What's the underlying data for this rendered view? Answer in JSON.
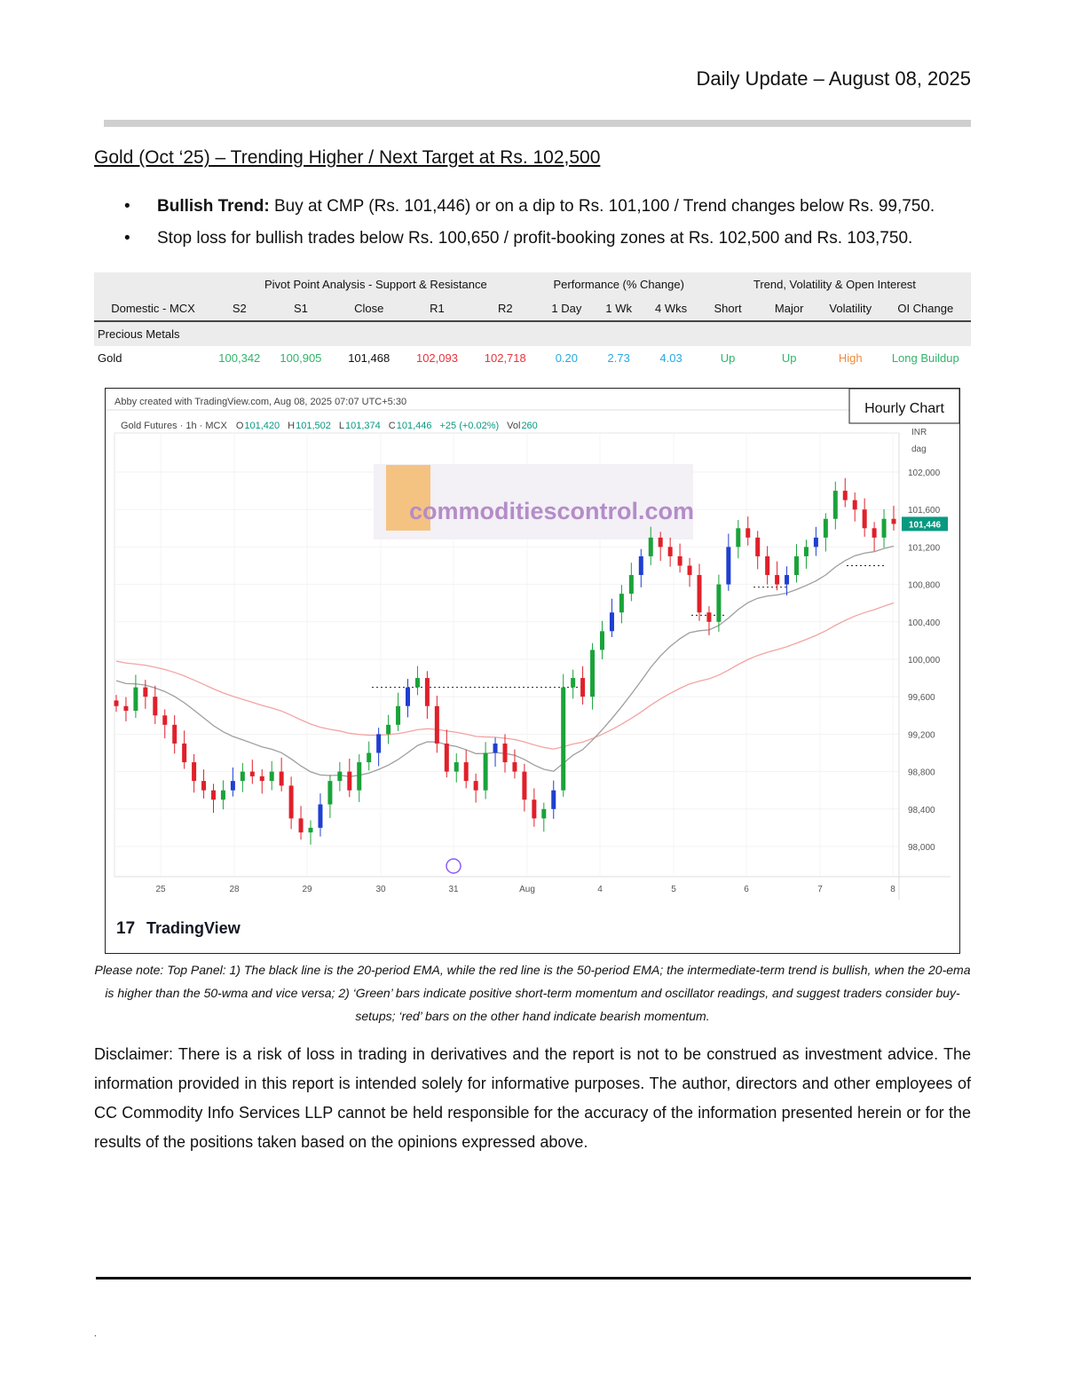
{
  "header": {
    "date": "Daily Update – August 08, 2025"
  },
  "title": "Gold (Oct   ‘25) – Trending Higher / Next Target at Rs. 102,500",
  "bullets": [
    {
      "bold": "Bullish Trend:",
      "text": " Buy at CMP (Rs. 101,446) or on a dip to Rs. 101,100 / Trend changes below Rs. 99,750."
    },
    {
      "bold": "",
      "text": "Stop loss for bullish trades below Rs. 100,650 / profit-booking zones at Rs. 102,500 and Rs. 103,750."
    }
  ],
  "table": {
    "groups": [
      "Pivot Point Analysis - Support & Resistance",
      "Performance (% Change)",
      "Trend, Volatility & Open Interest"
    ],
    "columns": [
      "Domestic - MCX",
      "S2",
      "S1",
      "Close",
      "R1",
      "R2",
      "1 Day",
      "1 Wk",
      "4 Wks",
      "Short",
      "Major",
      "Volatility",
      "OI Change"
    ],
    "section": "Precious Metals",
    "row": [
      "Gold",
      "100,342",
      "100,905",
      "101,468",
      "102,093",
      "102,718",
      "0.20",
      "2.73",
      "4.03",
      "Up",
      "Up",
      "High",
      "Long Buildup"
    ]
  },
  "chart_data": {
    "type": "candlestick",
    "label": "Hourly Chart",
    "attribution": "Abby created with TradingView.com, Aug 08, 2025 07:07 UTC+5:30",
    "symbol": "Gold Futures · 1h · MCX",
    "ohlc": {
      "O": "101,420",
      "H": "101,502",
      "L": "101,374",
      "C": "101,446",
      "change": "+25 (+0.02%)",
      "vol": "260"
    },
    "currency": "INR",
    "unit": "dag",
    "last_price": "101,446",
    "watermark": "commoditiescontrol.com",
    "brand": "TradingView",
    "y_ticks": [
      102000,
      101600,
      101200,
      100800,
      100400,
      100000,
      99600,
      99200,
      98800,
      98400,
      98000
    ],
    "x_ticks": [
      "25",
      "28",
      "29",
      "30",
      "31",
      "Aug",
      "4",
      "5",
      "6",
      "7",
      "8"
    ],
    "ylim": [
      97800,
      102400
    ],
    "closes": [
      99500,
      99450,
      99700,
      99600,
      99400,
      99300,
      99100,
      98900,
      98700,
      98600,
      98500,
      98600,
      98700,
      98800,
      98750,
      98700,
      98800,
      98650,
      98300,
      98150,
      98200,
      98450,
      98700,
      98800,
      98600,
      98900,
      99000,
      99200,
      99300,
      99500,
      99700,
      99800,
      99500,
      99100,
      98800,
      98900,
      98700,
      98600,
      99000,
      99100,
      98900,
      98800,
      98500,
      98300,
      98400,
      98600,
      99700,
      99800,
      99600,
      100100,
      100300,
      100500,
      100700,
      100900,
      101100,
      101300,
      101200,
      101100,
      101000,
      100900,
      100500,
      100400,
      100800,
      101200,
      101400,
      101300,
      101100,
      100900,
      100800,
      100900,
      101100,
      101200,
      101300,
      101500,
      101800,
      101700,
      101600,
      101400,
      101300,
      101500,
      101446
    ],
    "levels": [
      99700,
      100470,
      100770,
      101000
    ],
    "colors": {
      "up": "#089981",
      "down": "#f23645",
      "ema20": "#9e9e9e",
      "ema50": "#f4a3a3",
      "bull_bar": "#1aa33a",
      "bear_bar": "#e0202a"
    },
    "series": [
      {
        "name": "20-period EMA"
      },
      {
        "name": "50-period EMA"
      }
    ]
  },
  "note": "Please note: Top Panel: 1) The black line is the 20-period EMA, while the red line is the 50-period EMA; the intermediate-term trend is bullish, when the 20-ema is higher than the 50-wma and vice versa; 2)   ‘Green’   bars indicate positive short-term momentum and oscillator readings, and suggest traders consider buy-setups;   ‘red’   bars on the other hand indicate bearish momentum.",
  "disclaimer": "Disclaimer: There is a risk of loss in trading in derivatives and the report is not to be construed as investment advice. The information provided in this report is intended solely for informative purposes. The author, directors and other employees of CC Commodity Info Services LLP cannot be held responsible for the accuracy of the information presented herein or for the results of the positions taken based on the opinions expressed above."
}
